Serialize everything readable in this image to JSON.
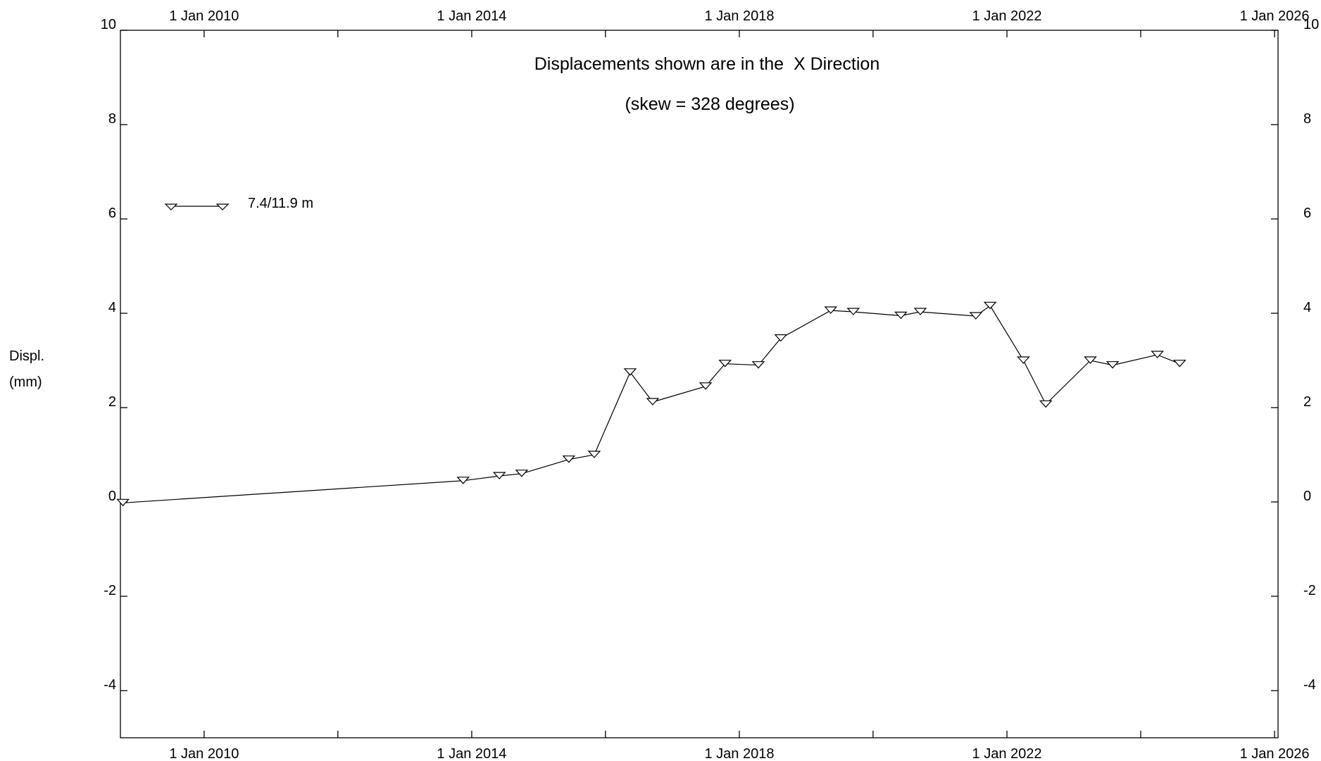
{
  "chart_data": {
    "type": "line",
    "title": "Displacements shown are in the  X Direction",
    "subtitle": "(skew = 328 degrees)",
    "ylabel_lines": [
      "Displ.",
      "(mm)"
    ],
    "xlabel": "",
    "xlim": [
      "2008-10-01",
      "2026-01-20"
    ],
    "ylim": [
      -5,
      10
    ],
    "x_ticks": [
      {
        "date": "2010-01-01",
        "label": "1 Jan 2010"
      },
      {
        "date": "2014-01-01",
        "label": "1 Jan 2014"
      },
      {
        "date": "2018-01-01",
        "label": "1 Jan 2018"
      },
      {
        "date": "2022-01-01",
        "label": "1 Jan 2022"
      },
      {
        "date": "2026-01-01",
        "label": "1 Jan 2026"
      }
    ],
    "x_minor_ticks": [
      "2012-01-01",
      "2016-01-01",
      "2020-01-01",
      "2024-01-01"
    ],
    "y_ticks": [
      {
        "value": -4,
        "label": "-4"
      },
      {
        "value": -2,
        "label": "-2"
      },
      {
        "value": 0,
        "label": "0"
      },
      {
        "value": 2,
        "label": "2"
      },
      {
        "value": 4,
        "label": "4"
      },
      {
        "value": 6,
        "label": "6"
      },
      {
        "value": 8,
        "label": "8"
      },
      {
        "value": 10,
        "label": "10"
      }
    ],
    "grid": false,
    "legend_position": "top-left",
    "series": [
      {
        "name": "7.4/11.9 m",
        "marker": "triangle-down",
        "color": "#000000",
        "points": [
          {
            "x": "2008-10-15",
            "y": -0.02
          },
          {
            "x": "2013-11-15",
            "y": 0.45
          },
          {
            "x": "2014-06-01",
            "y": 0.55
          },
          {
            "x": "2014-10-01",
            "y": 0.6
          },
          {
            "x": "2015-06-15",
            "y": 0.9
          },
          {
            "x": "2015-11-01",
            "y": 1.0
          },
          {
            "x": "2016-05-15",
            "y": 2.75
          },
          {
            "x": "2016-09-15",
            "y": 2.12
          },
          {
            "x": "2017-07-01",
            "y": 2.45
          },
          {
            "x": "2017-10-15",
            "y": 2.93
          },
          {
            "x": "2018-04-15",
            "y": 2.9
          },
          {
            "x": "2018-08-15",
            "y": 3.47
          },
          {
            "x": "2019-05-15",
            "y": 4.06
          },
          {
            "x": "2019-09-15",
            "y": 4.03
          },
          {
            "x": "2020-06-01",
            "y": 3.95
          },
          {
            "x": "2020-09-15",
            "y": 4.03
          },
          {
            "x": "2021-07-15",
            "y": 3.94
          },
          {
            "x": "2021-10-01",
            "y": 4.16
          },
          {
            "x": "2022-04-01",
            "y": 3.0
          },
          {
            "x": "2022-08-01",
            "y": 2.07
          },
          {
            "x": "2023-04-01",
            "y": 3.0
          },
          {
            "x": "2023-08-01",
            "y": 2.9
          },
          {
            "x": "2024-04-01",
            "y": 3.12
          },
          {
            "x": "2024-08-01",
            "y": 2.93
          }
        ]
      }
    ]
  }
}
